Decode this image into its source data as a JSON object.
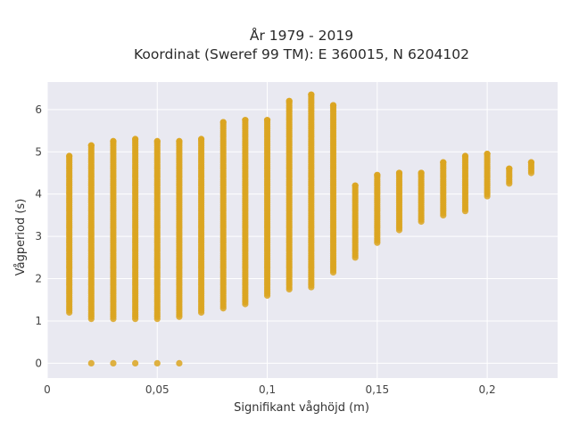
{
  "chart_data": {
    "type": "scatter",
    "title_line1": "År 1979 - 2019",
    "title_line2": "Koordinat (Sweref 99 TM): E 360015, N 6204102",
    "xlabel": "Signifikant våghöjd (m)",
    "ylabel": "Vågperiod (s)",
    "xlim": [
      0,
      0.232
    ],
    "ylim": [
      -0.35,
      6.65
    ],
    "x_ticks": [
      0,
      0.05,
      0.1,
      0.15,
      0.2
    ],
    "x_tick_labels": [
      "0",
      "0,05",
      "0,1",
      "0,15",
      "0,2"
    ],
    "y_ticks": [
      0,
      1,
      2,
      3,
      4,
      5,
      6
    ],
    "y_tick_labels": [
      "0",
      "1",
      "2",
      "3",
      "4",
      "5",
      "6"
    ],
    "plot_background": "#e9e9f1",
    "grid": true,
    "grid_color": "#ffffff",
    "marker_color": "#daa520",
    "columns": [
      {
        "x": 0.01,
        "y_min": 1.2,
        "y_max": 4.9,
        "zero": false
      },
      {
        "x": 0.02,
        "y_min": 1.05,
        "y_max": 5.15,
        "zero": true
      },
      {
        "x": 0.03,
        "y_min": 1.05,
        "y_max": 5.25,
        "zero": true
      },
      {
        "x": 0.04,
        "y_min": 1.05,
        "y_max": 5.3,
        "zero": true
      },
      {
        "x": 0.05,
        "y_min": 1.05,
        "y_max": 5.25,
        "zero": true
      },
      {
        "x": 0.06,
        "y_min": 1.1,
        "y_max": 5.25,
        "zero": true
      },
      {
        "x": 0.07,
        "y_min": 1.2,
        "y_max": 5.3,
        "zero": false
      },
      {
        "x": 0.08,
        "y_min": 1.3,
        "y_max": 5.7,
        "zero": false
      },
      {
        "x": 0.09,
        "y_min": 1.4,
        "y_max": 5.75,
        "zero": false
      },
      {
        "x": 0.1,
        "y_min": 1.6,
        "y_max": 5.75,
        "zero": false
      },
      {
        "x": 0.11,
        "y_min": 1.75,
        "y_max": 6.2,
        "zero": false
      },
      {
        "x": 0.12,
        "y_min": 1.8,
        "y_max": 6.35,
        "zero": false
      },
      {
        "x": 0.13,
        "y_min": 2.15,
        "y_max": 6.1,
        "zero": false
      },
      {
        "x": 0.14,
        "y_min": 2.5,
        "y_max": 4.2,
        "zero": false
      },
      {
        "x": 0.15,
        "y_min": 2.85,
        "y_max": 4.45,
        "zero": false
      },
      {
        "x": 0.16,
        "y_min": 3.15,
        "y_max": 4.5,
        "zero": false
      },
      {
        "x": 0.17,
        "y_min": 3.35,
        "y_max": 4.5,
        "zero": false
      },
      {
        "x": 0.18,
        "y_min": 3.5,
        "y_max": 4.75,
        "zero": false
      },
      {
        "x": 0.19,
        "y_min": 3.6,
        "y_max": 4.9,
        "zero": false
      },
      {
        "x": 0.2,
        "y_min": 3.95,
        "y_max": 4.95,
        "zero": false
      },
      {
        "x": 0.21,
        "y_min": 4.25,
        "y_max": 4.6,
        "zero": false
      },
      {
        "x": 0.22,
        "y_min": 4.5,
        "y_max": 4.75,
        "zero": false
      }
    ]
  }
}
